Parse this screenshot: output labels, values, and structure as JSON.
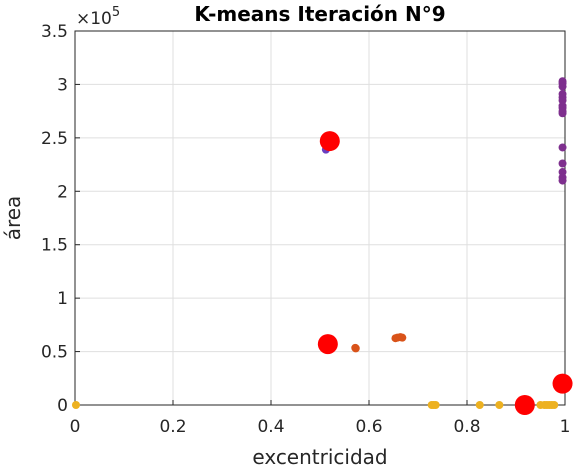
{
  "chart_data": {
    "type": "scatter",
    "title": "K-means Iteración N°9",
    "xlabel": "excentricidad",
    "ylabel": "área",
    "xlim": [
      0,
      1
    ],
    "ylim": [
      0,
      350000
    ],
    "y_multiplier_base": "×10",
    "y_multiplier_exp": "5",
    "x_ticks": [
      0,
      0.2,
      0.4,
      0.6,
      0.8,
      1
    ],
    "x_tick_labels": [
      "0",
      "0.2",
      "0.4",
      "0.6",
      "0.8",
      "1"
    ],
    "y_ticks": [
      0,
      50000,
      100000,
      150000,
      200000,
      250000,
      300000,
      350000
    ],
    "y_tick_labels": [
      "0",
      "0.5",
      "1",
      "1.5",
      "2",
      "2.5",
      "3",
      "3.5"
    ],
    "grid": true,
    "series": [
      {
        "color": "#7e2f8e",
        "points": [
          [
            0.995,
            303000
          ],
          [
            0.995,
            301000
          ],
          [
            0.995,
            298000
          ],
          [
            0.995,
            291000
          ],
          [
            0.995,
            288000
          ],
          [
            0.995,
            285000
          ],
          [
            0.995,
            280000
          ],
          [
            0.995,
            278000
          ],
          [
            0.995,
            275000
          ],
          [
            0.995,
            273000
          ],
          [
            0.995,
            241000
          ],
          [
            0.995,
            226000
          ],
          [
            0.995,
            218000
          ],
          [
            0.995,
            213000
          ],
          [
            0.995,
            210000
          ]
        ]
      },
      {
        "color": "#6a3fc0",
        "points": [
          [
            0.512,
            239000
          ]
        ]
      },
      {
        "color": "#d95319",
        "points": [
          [
            0.572,
            53500
          ],
          [
            0.573,
            53000
          ],
          [
            0.654,
            62500
          ],
          [
            0.658,
            63000
          ],
          [
            0.664,
            63500
          ],
          [
            0.668,
            63000
          ]
        ]
      },
      {
        "color": "#edb120",
        "points": [
          [
            0.002,
            0
          ],
          [
            0.728,
            0
          ],
          [
            0.732,
            0
          ],
          [
            0.736,
            0
          ],
          [
            0.826,
            0
          ],
          [
            0.866,
            0
          ],
          [
            0.95,
            0
          ],
          [
            0.958,
            0
          ],
          [
            0.963,
            0
          ],
          [
            0.968,
            0
          ],
          [
            0.973,
            0
          ],
          [
            0.978,
            0
          ]
        ]
      }
    ],
    "centroids": {
      "color": "#ff0000",
      "points": [
        [
          0.52,
          247000
        ],
        [
          0.516,
          57000
        ],
        [
          0.918,
          0
        ],
        [
          0.995,
          20000
        ]
      ]
    }
  }
}
